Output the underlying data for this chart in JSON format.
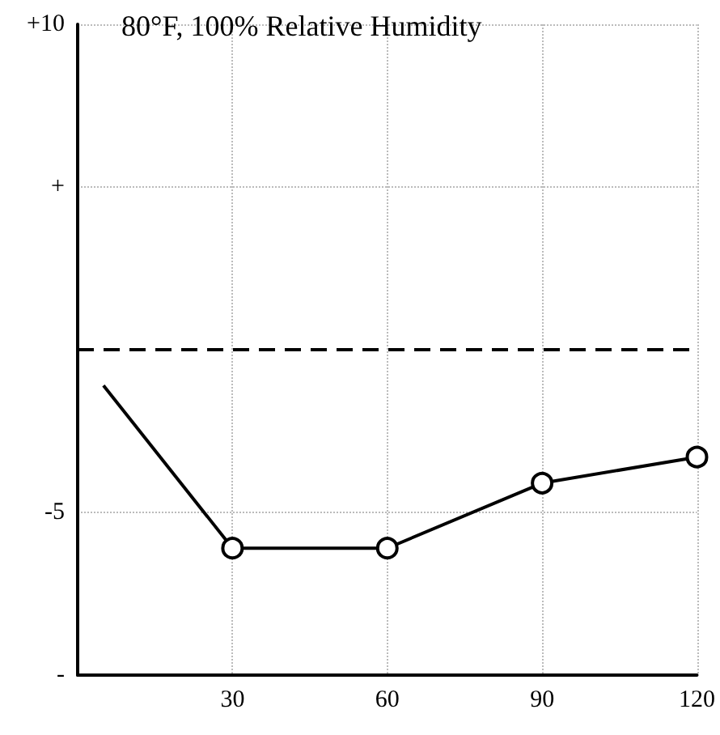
{
  "chart_data": {
    "type": "line",
    "title": "80°F, 100% Relative Humidity",
    "xlim": [
      0,
      120
    ],
    "xticks": [
      30,
      60,
      90,
      120
    ],
    "ylim": [
      -10,
      10
    ],
    "yticks": [
      {
        "value": 10,
        "label": "+10"
      },
      {
        "value": 5,
        "label": "+"
      },
      {
        "value": -5,
        "label": "-5"
      },
      {
        "value": -10,
        "label": "-"
      }
    ],
    "grid": true,
    "series": [
      {
        "color": "#000000",
        "x": [
          5,
          30
        ],
        "values": [
          -1.1,
          -6.1
        ]
      },
      {
        "color": "#000000",
        "x": [
          30,
          60,
          90,
          120
        ],
        "values": [
          -6.1,
          -6.1,
          -4.1,
          -3.3
        ],
        "marker": "circle"
      }
    ],
    "ref_lines": [
      {
        "axis": "y",
        "value": 0,
        "line_style": "dashed",
        "color": "#000000"
      }
    ]
  }
}
